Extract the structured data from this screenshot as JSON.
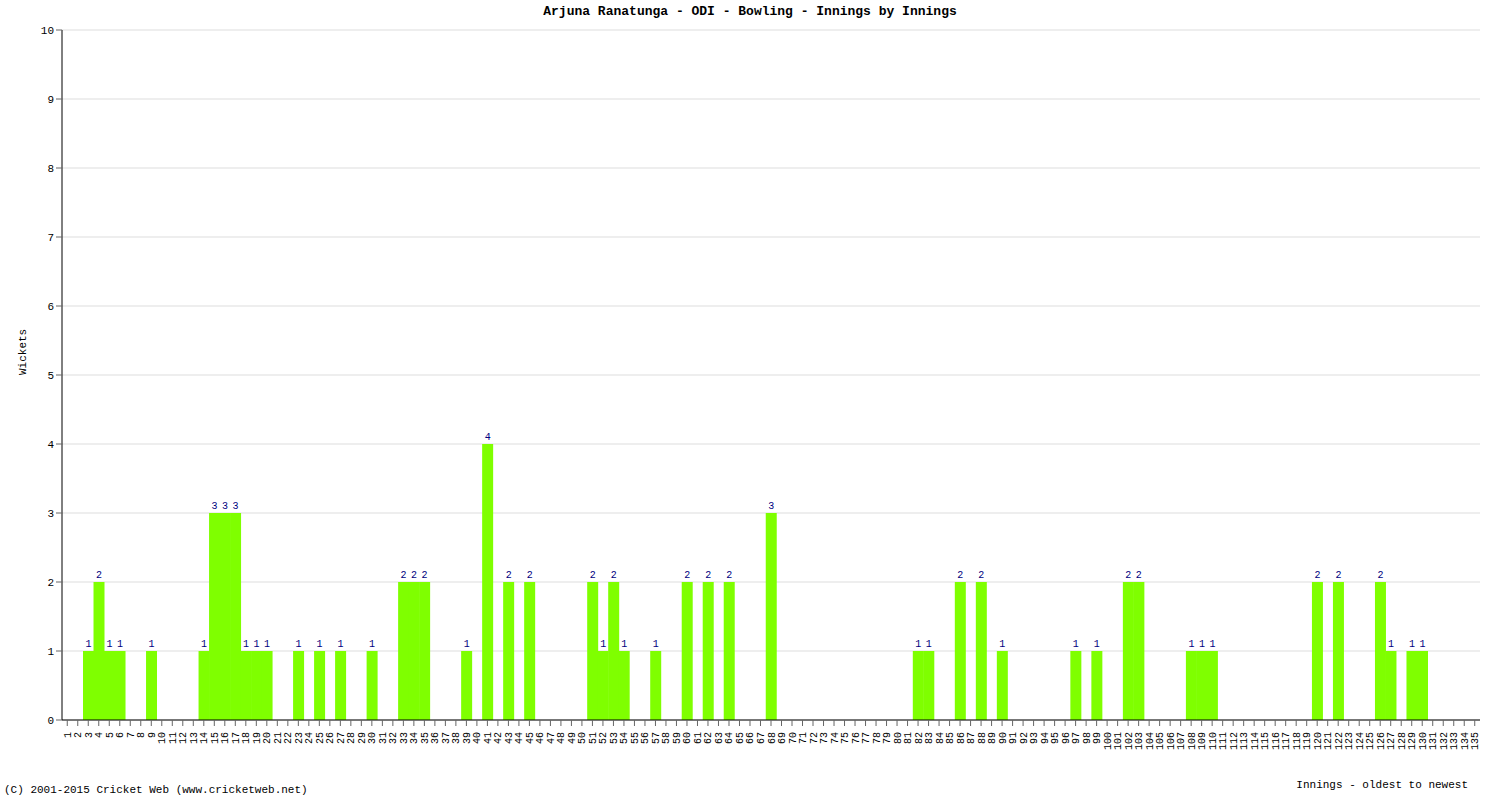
{
  "chart_data": {
    "type": "bar",
    "title": "Arjuna Ranatunga - ODI - Bowling - Innings by Innings",
    "x_label": "Innings - oldest to newest",
    "y_label": "Wickets",
    "annotations": [
      "(C) 2001-2015 Cricket Web (www.cricketweb.net)"
    ],
    "categories": [
      "1",
      "2",
      "3",
      "4",
      "5",
      "6",
      "7",
      "8",
      "9",
      "10",
      "11",
      "12",
      "13",
      "14",
      "15",
      "16",
      "17",
      "18",
      "19",
      "20",
      "21",
      "22",
      "23",
      "24",
      "25",
      "26",
      "27",
      "28",
      "29",
      "30",
      "31",
      "32",
      "33",
      "34",
      "35",
      "36",
      "37",
      "38",
      "39",
      "40",
      "41",
      "42",
      "43",
      "44",
      "45",
      "46",
      "47",
      "48",
      "49",
      "50",
      "51",
      "52",
      "53",
      "54",
      "55",
      "56",
      "57",
      "58",
      "59",
      "60",
      "61",
      "62",
      "63",
      "64",
      "65",
      "66",
      "67",
      "68",
      "69",
      "70",
      "71",
      "72",
      "73",
      "74",
      "75",
      "76",
      "77",
      "78",
      "79",
      "80",
      "81",
      "82",
      "83",
      "84",
      "85",
      "86",
      "87",
      "88",
      "89",
      "90",
      "91",
      "92",
      "93",
      "94",
      "95",
      "96",
      "97",
      "98",
      "99",
      "100",
      "101",
      "102",
      "103",
      "104",
      "105",
      "106",
      "107",
      "108",
      "109",
      "110",
      "111",
      "112",
      "113",
      "114",
      "115",
      "116",
      "117",
      "118",
      "119",
      "120",
      "121",
      "122",
      "123",
      "124",
      "125",
      "126",
      "127",
      "128",
      "129",
      "130",
      "131",
      "132",
      "133",
      "134",
      "135"
    ],
    "values": [
      0,
      0,
      1,
      2,
      1,
      1,
      0,
      0,
      1,
      0,
      0,
      0,
      0,
      1,
      3,
      3,
      3,
      1,
      1,
      1,
      0,
      0,
      1,
      0,
      1,
      0,
      1,
      0,
      0,
      1,
      0,
      0,
      2,
      2,
      2,
      0,
      0,
      0,
      1,
      0,
      4,
      0,
      2,
      0,
      2,
      0,
      0,
      0,
      0,
      0,
      2,
      1,
      2,
      1,
      0,
      0,
      1,
      0,
      0,
      2,
      0,
      2,
      0,
      2,
      0,
      0,
      0,
      3,
      0,
      0,
      0,
      0,
      0,
      0,
      0,
      0,
      0,
      0,
      0,
      0,
      0,
      1,
      1,
      0,
      0,
      2,
      0,
      2,
      0,
      1,
      0,
      0,
      0,
      0,
      0,
      0,
      1,
      0,
      1,
      0,
      0,
      2,
      2,
      0,
      0,
      0,
      0,
      1,
      1,
      1,
      0,
      0,
      0,
      0,
      0,
      0,
      0,
      0,
      0,
      2,
      0,
      2,
      0,
      0,
      0,
      2,
      1,
      0,
      1,
      1,
      0,
      0,
      0,
      0,
      0
    ],
    "color": "#7fff00",
    "ylim": [
      0,
      10
    ],
    "yticks": [
      0,
      1,
      2,
      3,
      4,
      5,
      6,
      7,
      8,
      9,
      10
    ],
    "grid": true,
    "data_labels": true
  }
}
